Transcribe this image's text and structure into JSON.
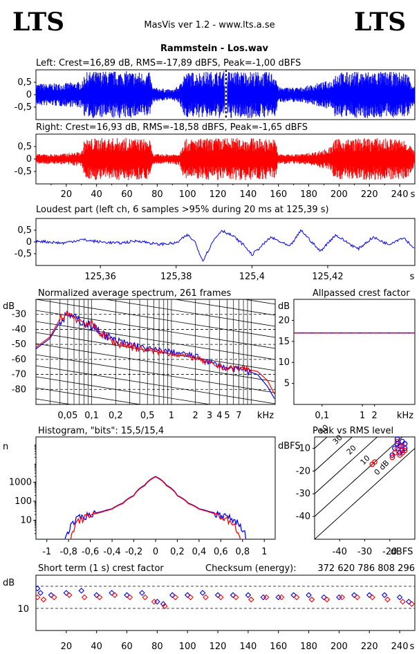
{
  "header": {
    "logo_left": "LTS",
    "logo_right": "LTS",
    "app_title": "MasVis ver 1.2 - www.lts.a.se",
    "file_title": "Rammstein - Los.wav"
  },
  "chart_data": [
    {
      "id": "left_waveform",
      "type": "area",
      "title": "Left: Crest=16,89 dB, RMS=-17,89 dBFS, Peak=-1,00 dBFS",
      "color": "#0000ff",
      "ylim": [
        -1,
        1
      ],
      "y_ticks": [
        "0,5",
        "0",
        "-0,5"
      ],
      "x_range_s": [
        0,
        250
      ],
      "marker_time_s": 125.39,
      "envelope_points": [
        [
          0,
          0.45
        ],
        [
          10,
          0.45
        ],
        [
          25,
          0.5
        ],
        [
          31,
          0.55
        ],
        [
          32,
          0.9
        ],
        [
          40,
          0.95
        ],
        [
          60,
          0.95
        ],
        [
          75,
          0.9
        ],
        [
          77,
          0.3
        ],
        [
          90,
          0.2
        ],
        [
          95,
          0.4
        ],
        [
          97,
          0.9
        ],
        [
          120,
          0.95
        ],
        [
          140,
          0.95
        ],
        [
          158,
          0.9
        ],
        [
          160,
          0.3
        ],
        [
          175,
          0.3
        ],
        [
          185,
          0.45
        ],
        [
          195,
          0.6
        ],
        [
          197,
          0.9
        ],
        [
          220,
          0.95
        ],
        [
          245,
          0.9
        ],
        [
          250,
          0.35
        ]
      ]
    },
    {
      "id": "right_waveform",
      "type": "area",
      "title": "Right: Crest=16,93 dB, RMS=-18,58 dBFS, Peak=-1,65 dBFS",
      "color": "#ff0000",
      "ylim": [
        -1,
        1
      ],
      "y_ticks": [
        "0,5",
        "0",
        "-0,5"
      ],
      "x_range_s": [
        0,
        250
      ],
      "x_ticks": [
        "20",
        "40",
        "60",
        "80",
        "100",
        "120",
        "140",
        "160",
        "180",
        "200",
        "220",
        "240"
      ],
      "x_unit": "s",
      "envelope_points": [
        [
          0,
          0.2
        ],
        [
          15,
          0.2
        ],
        [
          30,
          0.3
        ],
        [
          31,
          0.45
        ],
        [
          32,
          0.8
        ],
        [
          40,
          0.85
        ],
        [
          60,
          0.85
        ],
        [
          75,
          0.8
        ],
        [
          77,
          0.2
        ],
        [
          90,
          0.2
        ],
        [
          95,
          0.25
        ],
        [
          97,
          0.8
        ],
        [
          120,
          0.85
        ],
        [
          140,
          0.85
        ],
        [
          158,
          0.8
        ],
        [
          160,
          0.2
        ],
        [
          175,
          0.2
        ],
        [
          185,
          0.3
        ],
        [
          195,
          0.5
        ],
        [
          197,
          0.8
        ],
        [
          220,
          0.85
        ],
        [
          245,
          0.8
        ],
        [
          250,
          0.25
        ]
      ]
    },
    {
      "id": "loudest_part",
      "type": "line",
      "title": "Loudest part (left  ch, 6 samples >95% during 20 ms at 125,39 s)",
      "color": "#0000ff",
      "ylim": [
        -1,
        1
      ],
      "y_ticks": [
        "0,5",
        "0",
        "-0,5"
      ],
      "xlim": [
        125.343,
        125.443
      ],
      "x_ticks": [
        "125,36",
        "125,38",
        "125,4",
        "125,42"
      ],
      "x_unit": "s",
      "waveform_points": [
        [
          125.343,
          0.05
        ],
        [
          125.35,
          -0.05
        ],
        [
          125.355,
          0.1
        ],
        [
          125.36,
          0.0
        ],
        [
          125.365,
          -0.05
        ],
        [
          125.37,
          0.05
        ],
        [
          125.375,
          -0.1
        ],
        [
          125.38,
          -0.05
        ],
        [
          125.383,
          0.3
        ],
        [
          125.385,
          0.0
        ],
        [
          125.387,
          -0.8
        ],
        [
          125.39,
          0.1
        ],
        [
          125.392,
          0.5
        ],
        [
          125.395,
          0.25
        ],
        [
          125.398,
          -0.15
        ],
        [
          125.4,
          -0.55
        ],
        [
          125.405,
          0.2
        ],
        [
          125.41,
          -0.2
        ],
        [
          125.413,
          0.5
        ],
        [
          125.418,
          -0.4
        ],
        [
          125.422,
          0.3
        ],
        [
          125.428,
          -0.3
        ],
        [
          125.432,
          0.2
        ],
        [
          125.436,
          -0.1
        ],
        [
          125.44,
          0.2
        ],
        [
          125.443,
          -0.3
        ]
      ]
    },
    {
      "id": "spectrum",
      "type": "line",
      "title": "Normalized average spectrum, 261 frames",
      "ylabel": "dB",
      "xlabel": "kHz",
      "x_scale": "log",
      "xlim_khz": [
        0.02,
        20
      ],
      "ylim_db": [
        -90,
        -20
      ],
      "y_ticks": [
        -30,
        -40,
        -50,
        -60,
        -70,
        -80
      ],
      "x_tick_labels": [
        "0,05",
        "0,1",
        "0,2",
        "0,5",
        "1",
        "2",
        "3",
        "4",
        "5",
        "7"
      ],
      "x_tick_values": [
        0.05,
        0.1,
        0.2,
        0.5,
        1,
        2,
        3,
        4,
        5,
        7
      ],
      "series": [
        {
          "color": "#0000ff",
          "points": [
            [
              0.02,
              -53
            ],
            [
              0.03,
              -46
            ],
            [
              0.04,
              -35
            ],
            [
              0.05,
              -30
            ],
            [
              0.07,
              -34
            ],
            [
              0.1,
              -38
            ],
            [
              0.15,
              -44
            ],
            [
              0.2,
              -48
            ],
            [
              0.3,
              -50
            ],
            [
              0.5,
              -53
            ],
            [
              1,
              -55
            ],
            [
              2,
              -58
            ],
            [
              3,
              -62
            ],
            [
              5,
              -66
            ],
            [
              8,
              -67
            ],
            [
              12,
              -70
            ],
            [
              16,
              -78
            ],
            [
              20,
              -87
            ]
          ]
        },
        {
          "color": "#ff0000",
          "points": [
            [
              0.02,
              -52
            ],
            [
              0.03,
              -45
            ],
            [
              0.04,
              -33
            ],
            [
              0.05,
              -29
            ],
            [
              0.07,
              -34
            ],
            [
              0.1,
              -37
            ],
            [
              0.15,
              -45
            ],
            [
              0.2,
              -49
            ],
            [
              0.3,
              -51
            ],
            [
              0.5,
              -54
            ],
            [
              1,
              -56
            ],
            [
              2,
              -59
            ],
            [
              3,
              -63
            ],
            [
              5,
              -66
            ],
            [
              8,
              -66
            ],
            [
              12,
              -68
            ],
            [
              16,
              -74
            ],
            [
              20,
              -84
            ]
          ]
        }
      ]
    },
    {
      "id": "allpassed_crest",
      "type": "line",
      "title": "Allpassed crest factor",
      "ylabel": "dB",
      "xlabel": "kHz",
      "x_scale": "log",
      "xlim_khz": [
        0.02,
        20
      ],
      "ylim": [
        0,
        25
      ],
      "y_ticks": [
        20,
        15,
        10,
        5
      ],
      "x_tick_labels": [
        "0,1",
        "1",
        "2"
      ],
      "x_tick_values": [
        0.1,
        1,
        2
      ],
      "series": [
        {
          "color": "#0000ff",
          "points": [
            [
              0.02,
              17
            ],
            [
              0.2,
              17
            ],
            [
              1,
              17
            ],
            [
              20,
              17
            ]
          ]
        },
        {
          "color": "#ff0000",
          "points": [
            [
              0.02,
              17
            ],
            [
              0.2,
              17
            ],
            [
              1,
              17
            ],
            [
              20,
              17
            ]
          ]
        }
      ]
    },
    {
      "id": "histogram",
      "type": "line",
      "title": "Histogram, \"bits\": 15,5/15,4",
      "ylabel": "n",
      "y_scale": "log",
      "ylim": [
        1,
        100000
      ],
      "y_ticks": [
        "1000",
        "100",
        "10"
      ],
      "y_tick_values": [
        1000,
        100,
        10
      ],
      "xlim": [
        -1.1,
        1.1
      ],
      "x_ticks": [
        "-1",
        "-0,8",
        "-0,6",
        "-0,4",
        "-0,2",
        "0",
        "0,2",
        "0,4",
        "0,6",
        "0,8",
        "1"
      ],
      "series": [
        {
          "color": "#0000ff",
          "points": [
            [
              -0.83,
              1
            ],
            [
              -0.8,
              3
            ],
            [
              -0.75,
              8
            ],
            [
              -0.7,
              14
            ],
            [
              -0.6,
              20
            ],
            [
              -0.5,
              28
            ],
            [
              -0.4,
              40
            ],
            [
              -0.3,
              80
            ],
            [
              -0.2,
              200
            ],
            [
              -0.1,
              700
            ],
            [
              0,
              2000
            ],
            [
              0.1,
              700
            ],
            [
              0.2,
              200
            ],
            [
              0.3,
              80
            ],
            [
              0.4,
              40
            ],
            [
              0.5,
              28
            ],
            [
              0.6,
              20
            ],
            [
              0.7,
              12
            ],
            [
              0.75,
              8
            ],
            [
              0.8,
              4
            ],
            [
              0.83,
              1
            ]
          ]
        },
        {
          "color": "#ff0000",
          "points": [
            [
              -0.78,
              1
            ],
            [
              -0.75,
              3
            ],
            [
              -0.7,
              10
            ],
            [
              -0.6,
              18
            ],
            [
              -0.5,
              26
            ],
            [
              -0.4,
              38
            ],
            [
              -0.3,
              75
            ],
            [
              -0.2,
              190
            ],
            [
              -0.1,
              650
            ],
            [
              0,
              1900
            ],
            [
              0.1,
              650
            ],
            [
              0.2,
              190
            ],
            [
              0.3,
              75
            ],
            [
              0.4,
              38
            ],
            [
              0.5,
              26
            ],
            [
              0.6,
              16
            ],
            [
              0.7,
              8
            ],
            [
              0.75,
              3
            ],
            [
              0.78,
              1
            ]
          ]
        }
      ]
    },
    {
      "id": "peak_vs_rms",
      "type": "scatter",
      "title": "Peak vs RMS level",
      "ylabel": "dBFS",
      "xlabel": "dBFS",
      "xlim": [
        -50,
        -10
      ],
      "ylim": [
        -50,
        -5
      ],
      "x_ticks": [
        -40,
        -30,
        -20
      ],
      "y_ticks": [
        -10,
        -20,
        -30,
        -40
      ],
      "diagonal_labels": [
        "40",
        "30",
        "20",
        "10",
        "0 dB"
      ],
      "diagonal_offsets": [
        40,
        30,
        20,
        10,
        0
      ],
      "series": [
        {
          "color": "#0000ff",
          "points": [
            [
              -17,
              -6
            ],
            [
              -15,
              -7
            ],
            [
              -16,
              -9
            ],
            [
              -18,
              -10
            ],
            [
              -14,
              -8
            ],
            [
              -16,
              -12
            ],
            [
              -19,
              -13
            ],
            [
              -15,
              -11
            ],
            [
              -17,
              -8
            ],
            [
              -14,
              -10
            ]
          ]
        },
        {
          "color": "#ff0000",
          "points": [
            [
              -27,
              -17
            ],
            [
              -26,
              -16
            ],
            [
              -18,
              -12
            ],
            [
              -17,
              -10
            ],
            [
              -15,
              -9
            ],
            [
              -16,
              -13
            ],
            [
              -19,
              -14
            ],
            [
              -14,
              -11
            ],
            [
              -17,
              -7
            ],
            [
              -15,
              -12
            ]
          ]
        }
      ]
    },
    {
      "id": "short_term_crest",
      "type": "scatter",
      "title": "Short term (1 s) crest factor",
      "checksum_label": "Checksum (energy):",
      "checksum_value": "372 620 786 808 296",
      "ylabel": "dB",
      "xlim": [
        0,
        250
      ],
      "ylim": [
        0,
        25
      ],
      "y_ticks": [
        10
      ],
      "dashed_levels": [
        10,
        20
      ],
      "x_ticks": [
        "20",
        "40",
        "60",
        "80",
        "100",
        "120",
        "140",
        "160",
        "180",
        "200",
        "220",
        "240"
      ],
      "x_unit": "s",
      "series": [
        {
          "color": "#0000ff",
          "points": [
            [
              1,
              19
            ],
            [
              3,
              17
            ],
            [
              10,
              16
            ],
            [
              20,
              17
            ],
            [
              30,
              18
            ],
            [
              40,
              16
            ],
            [
              50,
              17
            ],
            [
              60,
              16
            ],
            [
              70,
              17
            ],
            [
              80,
              13
            ],
            [
              84,
              12
            ],
            [
              90,
              16
            ],
            [
              100,
              16
            ],
            [
              110,
              17
            ],
            [
              120,
              16
            ],
            [
              130,
              16
            ],
            [
              140,
              16
            ],
            [
              150,
              15
            ],
            [
              160,
              15
            ],
            [
              170,
              16
            ],
            [
              180,
              16
            ],
            [
              190,
              15
            ],
            [
              200,
              15
            ],
            [
              210,
              16
            ],
            [
              220,
              16
            ],
            [
              230,
              16
            ],
            [
              240,
              15
            ],
            [
              246,
              13
            ]
          ]
        },
        {
          "color": "#ff0000",
          "points": [
            [
              1,
              15
            ],
            [
              5,
              14
            ],
            [
              12,
              15
            ],
            [
              22,
              16
            ],
            [
              32,
              15
            ],
            [
              42,
              15
            ],
            [
              52,
              16
            ],
            [
              62,
              15
            ],
            [
              72,
              15
            ],
            [
              78,
              13
            ],
            [
              85,
              11
            ],
            [
              92,
              15
            ],
            [
              102,
              15
            ],
            [
              112,
              15
            ],
            [
              122,
              15
            ],
            [
              132,
              15
            ],
            [
              142,
              14
            ],
            [
              152,
              15
            ],
            [
              162,
              15
            ],
            [
              172,
              15
            ],
            [
              182,
              14
            ],
            [
              192,
              14
            ],
            [
              202,
              15
            ],
            [
              212,
              15
            ],
            [
              222,
              15
            ],
            [
              232,
              14
            ],
            [
              242,
              13
            ],
            [
              248,
              12
            ]
          ]
        }
      ]
    }
  ]
}
